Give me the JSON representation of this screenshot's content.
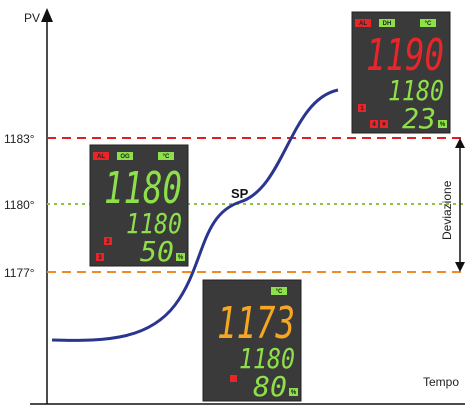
{
  "axes": {
    "y_label": "PV",
    "x_label": "Tempo"
  },
  "levels": [
    "1183°",
    "1180°",
    "1177°"
  ],
  "setpoint_label": "SP",
  "deviation_label": "Deviazione",
  "displays": [
    {
      "indicators": [
        "AL",
        "DH",
        "°C"
      ],
      "main": "1190",
      "setpoint": "1180",
      "output": "23",
      "unit": "%",
      "keys": [
        "1",
        "4",
        "▼"
      ]
    },
    {
      "indicators": [
        "AL",
        "OG",
        "°C"
      ],
      "main": "1180",
      "setpoint": "1180",
      "output": "50",
      "unit": "%",
      "keys": [
        "2",
        "3"
      ]
    },
    {
      "indicators": [
        "°C"
      ],
      "main": "1173",
      "setpoint": "1180",
      "output": "80",
      "unit": "%",
      "keys": []
    }
  ]
}
